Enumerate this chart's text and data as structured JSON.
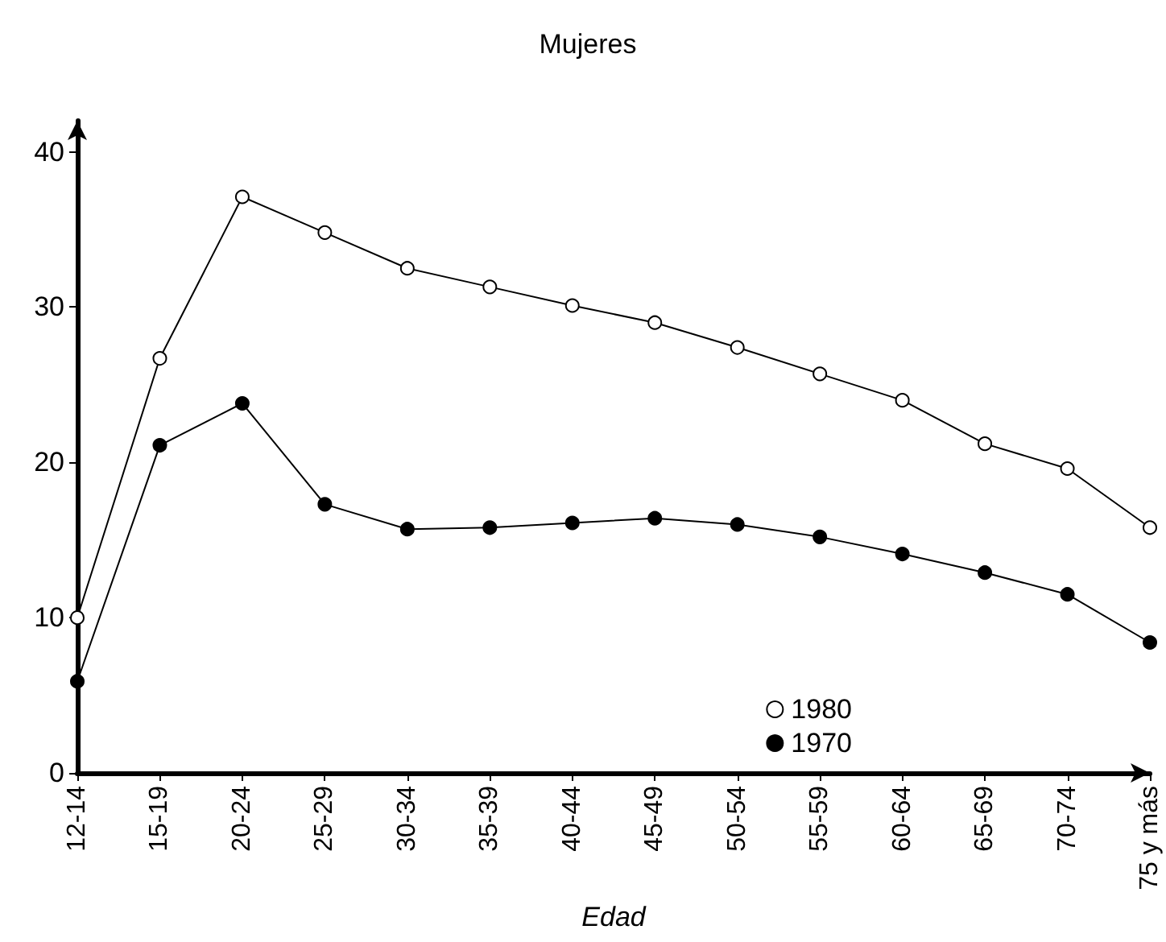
{
  "chart_data": {
    "type": "line",
    "title": "Mujeres",
    "xlabel": "Edad",
    "categories": [
      "12-14",
      "15-19",
      "20-24",
      "25-29",
      "30-34",
      "35-39",
      "40-44",
      "45-49",
      "50-54",
      "55-59",
      "60-64",
      "65-69",
      "70-74",
      "75 y más"
    ],
    "series": [
      {
        "name": "1980",
        "color": "#ffffff",
        "values": [
          10.0,
          26.7,
          37.1,
          34.8,
          32.5,
          31.3,
          30.1,
          29.0,
          27.4,
          25.7,
          24.0,
          21.2,
          19.6,
          15.8
        ]
      },
      {
        "name": "1970",
        "color": "#000000",
        "values": [
          5.9,
          21.1,
          23.8,
          17.3,
          15.7,
          15.8,
          16.1,
          16.4,
          16.0,
          15.2,
          14.1,
          12.9,
          11.5,
          8.4
        ]
      }
    ],
    "ylim": [
      0,
      42
    ],
    "yticks": [
      0,
      10,
      20,
      30,
      40
    ],
    "grid": false,
    "legend": "bottom right",
    "marker": "circle",
    "line_style": "solid"
  }
}
